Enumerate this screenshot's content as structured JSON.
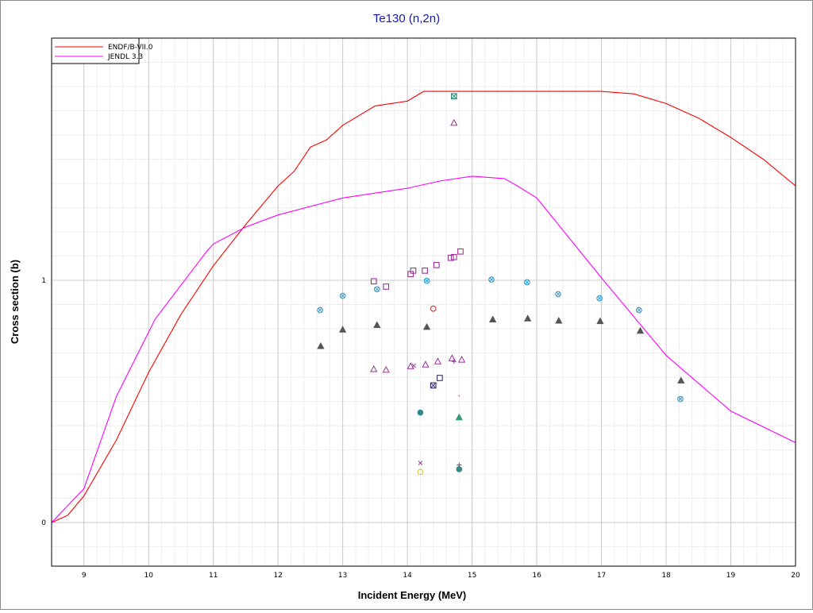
{
  "chart_data": {
    "type": "scatter",
    "title": "Te130 (n,2n)",
    "xlabel": "Incident Energy (MeV)",
    "ylabel": "Cross section (b)",
    "xlim": [
      8.5,
      20
    ],
    "ylim": [
      -0.18,
      2.0
    ],
    "x_ticks": [
      "9",
      "10",
      "11",
      "12",
      "13",
      "14",
      "15",
      "16",
      "17",
      "18",
      "19",
      "20"
    ],
    "y_ticks": [
      "0",
      "1"
    ],
    "grid": true,
    "legend_position": "top-left",
    "series": [
      {
        "name": "ENDF/B-VII.0",
        "kind": "line",
        "color": "#ff0000",
        "x": [
          8.5,
          8.75,
          9.0,
          9.5,
          10.0,
          10.5,
          11.0,
          11.5,
          11.75,
          12.0,
          12.25,
          12.5,
          12.75,
          13.0,
          13.5,
          14.0,
          14.25,
          15.0,
          16.0,
          17.0,
          17.5,
          18.0,
          18.5,
          19.0,
          19.5,
          20.0
        ],
        "y": [
          0.0,
          0.03,
          0.11,
          0.34,
          0.62,
          0.86,
          1.06,
          1.23,
          1.31,
          1.39,
          1.45,
          1.55,
          1.58,
          1.64,
          1.72,
          1.74,
          1.78,
          1.78,
          1.78,
          1.78,
          1.77,
          1.73,
          1.67,
          1.59,
          1.5,
          1.39
        ]
      },
      {
        "name": "JENDL 3.3",
        "kind": "line",
        "color": "#ff00ff",
        "x": [
          8.5,
          9.0,
          9.5,
          10.1,
          10.5,
          10.9,
          11.0,
          11.5,
          12.0,
          13.0,
          13.5,
          14.0,
          14.5,
          15.0,
          15.5,
          15.7,
          16.0,
          17.0,
          18.0,
          19.0,
          20.0
        ],
        "y": [
          0.0,
          0.14,
          0.52,
          0.84,
          0.98,
          1.12,
          1.15,
          1.22,
          1.27,
          1.34,
          1.36,
          1.38,
          1.41,
          1.43,
          1.42,
          1.39,
          1.34,
          1.01,
          0.69,
          0.46,
          0.33
        ]
      },
      {
        "kind": "points",
        "marker": "circle-x",
        "color": "#3399cc",
        "x": [
          12.65,
          13.0,
          13.53,
          14.3,
          15.3,
          15.85,
          16.33,
          16.97,
          17.58,
          18.22
        ],
        "y": [
          0.877,
          0.936,
          0.963,
          0.998,
          1.003,
          0.992,
          0.943,
          0.926,
          0.877,
          0.51
        ]
      },
      {
        "kind": "points",
        "marker": "triangle-filled",
        "color": "#555555",
        "x": [
          12.66,
          13.0,
          13.53,
          14.3,
          15.32,
          15.86,
          16.34,
          16.98,
          17.6,
          18.23
        ],
        "y": [
          0.728,
          0.796,
          0.815,
          0.807,
          0.838,
          0.842,
          0.833,
          0.831,
          0.791,
          0.586
        ]
      },
      {
        "kind": "points",
        "marker": "square",
        "color": "#993399",
        "x": [
          13.48,
          13.67,
          14.05,
          14.09,
          14.27,
          14.45,
          14.67,
          14.72,
          14.82
        ],
        "y": [
          0.996,
          0.974,
          1.026,
          1.04,
          1.04,
          1.063,
          1.093,
          1.096,
          1.119
        ]
      },
      {
        "kind": "points",
        "marker": "triangle-open",
        "color": "#993399",
        "x": [
          13.48,
          13.67,
          14.05,
          14.28,
          14.47,
          14.69,
          14.72,
          14.84
        ],
        "y": [
          0.633,
          0.63,
          0.645,
          0.652,
          0.665,
          0.678,
          1.65,
          0.672
        ]
      },
      {
        "kind": "points",
        "marker": "plus",
        "color": "#993399",
        "x": [
          14.72
        ],
        "y": [
          0.665
        ]
      },
      {
        "kind": "points",
        "marker": "x",
        "color": "#993399",
        "x": [
          14.1,
          14.2
        ],
        "y": [
          0.648,
          0.246
        ]
      },
      {
        "kind": "points",
        "marker": "circle-open",
        "color": "#cc3333",
        "x": [
          14.4
        ],
        "y": [
          0.883
        ]
      },
      {
        "kind": "points",
        "marker": "circle-open",
        "color": "#cccc33",
        "x": [
          14.2
        ],
        "y": [
          0.209
        ]
      },
      {
        "kind": "points",
        "marker": "square",
        "color": "#333366",
        "x": [
          14.5
        ],
        "y": [
          0.597
        ]
      },
      {
        "kind": "points",
        "marker": "square-x",
        "color": "#333366",
        "x": [
          14.4
        ],
        "y": [
          0.566
        ]
      },
      {
        "kind": "points",
        "marker": "square-x",
        "color": "#338877",
        "x": [
          14.72
        ],
        "y": [
          1.76
        ]
      },
      {
        "kind": "points",
        "marker": "circle-filled",
        "color": "#338888",
        "x": [
          14.2,
          14.8
        ],
        "y": [
          0.454,
          0.22
        ]
      },
      {
        "kind": "points",
        "marker": "triangle-filled",
        "color": "#339977",
        "x": [
          14.8
        ],
        "y": [
          0.434
        ]
      },
      {
        "kind": "points",
        "marker": "plus",
        "color": "#555555",
        "x": [
          14.8
        ],
        "y": [
          0.238
        ]
      },
      {
        "kind": "points",
        "marker": "dot",
        "color": "#cc6666",
        "x": [
          14.8
        ],
        "y": [
          0.523
        ]
      }
    ]
  }
}
